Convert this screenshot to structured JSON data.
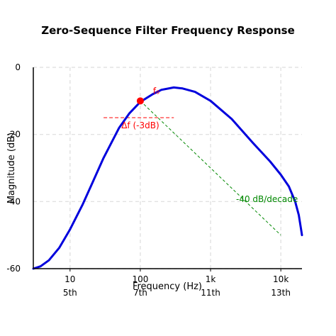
{
  "chart_data": {
    "type": "line",
    "title": "Zero-Sequence Filter Frequency Response",
    "xlabel": "Frequency (Hz)",
    "ylabel": "Magnitude (dB)",
    "x_scale": "log",
    "xlim": [
      3,
      20000
    ],
    "ylim": [
      -60,
      0
    ],
    "grid": true,
    "x_ticks": [
      {
        "value": 10,
        "label": "10",
        "harmonic": "5th"
      },
      {
        "value": 100,
        "label": "100",
        "harmonic": "7th"
      },
      {
        "value": 1000,
        "label": "1k",
        "harmonic": "11th"
      },
      {
        "value": 10000,
        "label": "10k",
        "harmonic": "13th"
      }
    ],
    "y_ticks": [
      {
        "value": 0,
        "label": "0"
      },
      {
        "value": -20,
        "label": "-20"
      },
      {
        "value": -40,
        "label": "-40"
      },
      {
        "value": -60,
        "label": "-60"
      }
    ],
    "series": [
      {
        "color": "#0000dd",
        "points": [
          [
            3.0,
            -60
          ],
          [
            3.8,
            -59.3
          ],
          [
            5.0,
            -57.5
          ],
          [
            7.0,
            -53.8
          ],
          [
            10,
            -48.3
          ],
          [
            15,
            -41.0
          ],
          [
            20,
            -35.2
          ],
          [
            30,
            -27.0
          ],
          [
            50,
            -18.0
          ],
          [
            70,
            -13.7
          ],
          [
            100,
            -10.3
          ],
          [
            150,
            -8.0
          ],
          [
            200,
            -6.7
          ],
          [
            300,
            -6.0
          ],
          [
            400,
            -6.3
          ],
          [
            600,
            -7.3
          ],
          [
            1000,
            -10.0
          ],
          [
            2000,
            -15.4
          ],
          [
            4000,
            -22.5
          ],
          [
            7000,
            -28.0
          ],
          [
            10000,
            -32.0
          ],
          [
            13000,
            -35.5
          ],
          [
            16000,
            -40.0
          ],
          [
            18000,
            -44.0
          ],
          [
            19500,
            -48.5
          ],
          [
            20000,
            -50.0
          ]
        ]
      }
    ],
    "annotations": {
      "marker": {
        "x": 100,
        "y": -10,
        "color": "#ff0000"
      },
      "marker_label": "f₀",
      "bandwidth_line": {
        "x1": 30,
        "x2": 300,
        "y": -15,
        "color": "#ff0000"
      },
      "bandwidth_label": "Δf (-3dB)",
      "slope_line": {
        "x1": 100,
        "y1": -10,
        "x2": 10000,
        "y2": -50,
        "color": "#008800"
      },
      "slope_label": "-40 dB/decade"
    }
  }
}
